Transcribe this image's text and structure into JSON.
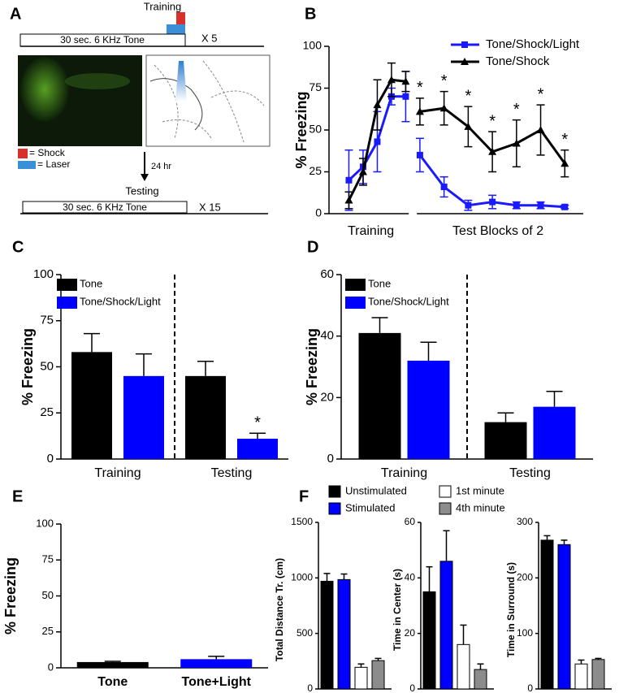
{
  "panel_a": {
    "label": "A",
    "training": "Training",
    "tone_training": "30 sec. 6 KHz Tone",
    "reps_training": "X 5",
    "shock": "= Shock",
    "laser": "= Laser",
    "delay": "24 hr",
    "testing": "Testing",
    "tone_testing": "30 sec. 6 KHz Tone",
    "reps_testing": "X 15"
  },
  "chart_data": [
    {
      "type": "line",
      "label": "B",
      "ylabel": "% Freezing",
      "x_group_labels": [
        "Training",
        "Test Blocks of 2"
      ],
      "x": [
        1,
        2,
        3,
        4,
        5,
        5.5,
        6,
        7.7,
        9.4,
        11.1,
        12.8,
        14.5,
        16.2
      ],
      "xlim": [
        0,
        17.5
      ],
      "ylim": [
        0,
        100
      ],
      "yticks": [
        0,
        25,
        50,
        75,
        100
      ],
      "series": [
        {
          "name": "Tone/Shock/Light",
          "color": "#1a1aff",
          "marker": "square",
          "values": [
            20,
            28,
            43,
            70,
            70,
            null,
            35,
            16,
            5,
            7,
            5,
            5,
            4
          ],
          "errors": [
            18,
            10,
            18,
            5,
            15,
            null,
            10,
            6,
            3,
            4,
            2,
            2,
            1
          ]
        },
        {
          "name": "Tone/Shock",
          "color": "#000000",
          "marker": "triangle",
          "values": [
            8,
            25,
            65,
            80,
            79,
            null,
            61,
            63,
            52,
            37,
            42,
            50,
            30
          ],
          "errors": [
            5,
            8,
            15,
            10,
            6,
            null,
            8,
            10,
            12,
            12,
            14,
            15,
            8
          ],
          "significance": [
            null,
            null,
            null,
            null,
            null,
            null,
            "*",
            "*",
            "*",
            "*",
            "*",
            "*",
            "*"
          ]
        }
      ]
    },
    {
      "type": "bar",
      "label": "C",
      "ylabel": "% Freezing",
      "categories": [
        "Training",
        "Testing"
      ],
      "ylim": [
        0,
        100
      ],
      "yticks": [
        0,
        25,
        50,
        75,
        100
      ],
      "series": [
        {
          "name": "Tone",
          "color": "#000000",
          "values": [
            58,
            45
          ],
          "errors": [
            10,
            8
          ]
        },
        {
          "name": "Tone/Shock/Light",
          "color": "#0000ff",
          "values": [
            45,
            11
          ],
          "errors": [
            12,
            3
          ],
          "significance": [
            null,
            "*"
          ]
        }
      ]
    },
    {
      "type": "bar",
      "label": "D",
      "ylabel": "% Freezing",
      "categories": [
        "Training",
        "Testing"
      ],
      "ylim": [
        0,
        60
      ],
      "yticks": [
        0,
        20,
        40,
        60
      ],
      "series": [
        {
          "name": "Tone",
          "color": "#000000",
          "values": [
            41,
            12
          ],
          "errors": [
            5,
            3
          ]
        },
        {
          "name": "Tone/Shock/Light",
          "color": "#0000ff",
          "values": [
            32,
            17
          ],
          "errors": [
            6,
            5
          ]
        }
      ]
    },
    {
      "type": "bar",
      "label": "E",
      "ylabel": "% Freezing",
      "categories": [
        "Tone",
        "Tone+Light"
      ],
      "values": [
        4,
        6
      ],
      "errors": [
        0.5,
        2
      ],
      "colors": [
        "#000000",
        "#0000ff"
      ],
      "ylim": [
        0,
        100
      ],
      "yticks": [
        0,
        25,
        50,
        75,
        100
      ]
    },
    {
      "type": "bar",
      "label": "F",
      "legend": [
        {
          "name": "Unstimulated",
          "color": "#000000"
        },
        {
          "name": "Stimulated",
          "color": "#0000ff"
        },
        {
          "name": "1st minute",
          "color": "#ffffff"
        },
        {
          "name": "4th minute",
          "color": "#8c8c8c"
        }
      ],
      "panels": [
        {
          "ylabel": "Total Distance Tr. (cm)",
          "values": [
            970,
            985,
            195,
            255
          ],
          "errors": [
            70,
            50,
            30,
            20
          ],
          "ylim": [
            0,
            1500
          ],
          "yticks": [
            0,
            500,
            1000,
            1500
          ]
        },
        {
          "ylabel": "Time in Center (s)",
          "values": [
            35,
            46,
            16,
            7
          ],
          "errors": [
            9,
            11,
            7,
            2
          ],
          "ylim": [
            0,
            60
          ],
          "yticks": [
            0,
            20,
            40,
            60
          ]
        },
        {
          "ylabel": "Time in Surround (s)",
          "values": [
            268,
            260,
            45,
            53
          ],
          "errors": [
            8,
            8,
            7,
            2
          ],
          "ylim": [
            0,
            300
          ],
          "yticks": [
            0,
            100,
            200,
            300
          ]
        }
      ]
    }
  ]
}
